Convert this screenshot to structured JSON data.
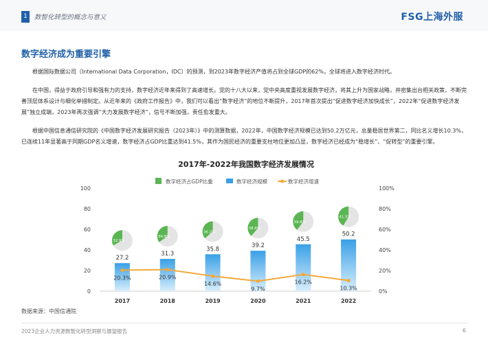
{
  "header": {
    "section_number": "1",
    "section_title": "数智化转型的概念与意义",
    "logo_latin": "FSG",
    "logo_cn": "上海外服"
  },
  "main_title": "数字经济成为重要引擎",
  "paragraphs": [
    "根据国际数据公司（International Data Corporation，IDC）的预测，到2023年数字经济产值将占到全球GDP的62%，全球将进入数字经济时代。",
    "在中国，得益于政府引导和强有力的支持，数字经济近年来得到了高速增长。党的十八大以来，党中央高度重视发展数字经济，将其上升为国家战略，并密集出台相关政策，不断完善顶层体系设计与细化举措制定。从近年来的《政府工作报告》中，我们可以看出“数字经济”的地位不断提升，2017年首次提出“促进数字经济加快成长”，2022年“促进数字经济发展”独立成端，2023年再次强调“大力发展数字经济”，信号不断加强，责任愈发重大。",
    "根据中国信息通信研究院的《中国数字经济发展研究报告（2023年）》中的测算数据，2022年，中国数字经济规模已达到50.2万亿元，总量稳居世界第二，同比名义增长10.3%，已连续11年显著高于同期GDP名义增速，数字经济占GDP比重达到41.5%，其作为国民经济的重要支柱地位更加凸显，数字经济已经成为“稳增长”、“促转型”的重要引擎。"
  ],
  "chart_data": {
    "type": "bar",
    "title": "2017年-2022年我国数字经济发展情况",
    "categories": [
      "2017",
      "2018",
      "2019",
      "2020",
      "2021",
      "2022"
    ],
    "series": [
      {
        "name": "数字经济占GDP比重",
        "kind": "pie",
        "values": [
          32.9,
          34.8,
          36.2,
          38.6,
          39.8,
          41.5
        ],
        "labels": [
          "32.9%",
          "34.8%",
          "36.2%",
          "38.6%",
          "39.8%",
          "41.5%"
        ],
        "color": "#5ab552"
      },
      {
        "name": "数字经济规模",
        "kind": "bar",
        "axis": "left",
        "values": [
          27.2,
          31.3,
          35.8,
          39.2,
          45.5,
          50.2
        ],
        "labels": [
          "27.2",
          "31.3",
          "35.8",
          "39.2",
          "45.5",
          "50.2"
        ],
        "color": "#3aa0e6"
      },
      {
        "name": "数字经济增速",
        "kind": "line",
        "axis": "right",
        "values": [
          20.3,
          20.9,
          14.6,
          9.7,
          16.2,
          10.3
        ],
        "labels": [
          "20.3%",
          "20.9%",
          "14.6%",
          "9.7%",
          "16.2%",
          "10.3%"
        ],
        "color": "#f2a93b"
      }
    ],
    "left_axis": {
      "ylim": [
        0,
        100
      ],
      "ticks": [
        "0",
        "20",
        "40",
        "60",
        "80",
        "100"
      ]
    },
    "right_axis": {
      "ylim": [
        0,
        100
      ],
      "ticks": [
        "0%",
        "20%",
        "40%",
        "60%",
        "80%",
        "100%"
      ]
    },
    "legend_position": "top",
    "grid": false
  },
  "source": "数据来源：中国信通院",
  "footer": {
    "text": "2023企业人力资源数智化转型洞察与展望报告",
    "page": "6"
  },
  "colors": {
    "brand": "#1f5fa8",
    "pie_rest": "#e4e4e4"
  }
}
